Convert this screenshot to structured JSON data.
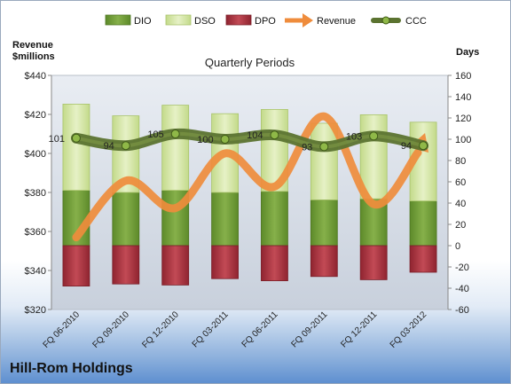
{
  "company": "Hill-Rom Holdings",
  "left_axis_title_1": "Revenue",
  "left_axis_title_2": "$millions",
  "right_axis_title": "Days",
  "chart_data": {
    "type": "bar",
    "title": "Quarterly Periods",
    "categories": [
      "FQ 06-2010",
      "FQ 09-2010",
      "FQ 12-2010",
      "FQ 03-2011",
      "FQ 06-2011",
      "FQ 09-2011",
      "FQ 12-2011",
      "FQ 03-2012"
    ],
    "legend": [
      "DIO",
      "DSO",
      "DPO",
      "Revenue",
      "CCC"
    ],
    "legend_position": "top",
    "series": [
      {
        "name": "DIO",
        "type": "stacked-bar",
        "axis": "right",
        "color": "#77a03d",
        "values": [
          52,
          50,
          52,
          50,
          51,
          43,
          44,
          42
        ]
      },
      {
        "name": "DSO",
        "type": "stacked-bar",
        "axis": "right",
        "color": "#d6e6a8",
        "values": [
          81,
          72,
          80,
          74,
          77,
          72,
          79,
          74
        ]
      },
      {
        "name": "DPO",
        "type": "negative-bar",
        "axis": "right",
        "color": "#b3343f",
        "values": [
          -38,
          -36,
          -37,
          -31,
          -33,
          -29,
          -32,
          -25
        ]
      },
      {
        "name": "Revenue",
        "type": "line",
        "axis": "left",
        "color": "#ef8c3c",
        "values": [
          357,
          386,
          372,
          400,
          383,
          419,
          374,
          405
        ]
      },
      {
        "name": "CCC",
        "type": "line",
        "axis": "right",
        "color": "#556b2f",
        "values": [
          101,
          94,
          105,
          100,
          104,
          93,
          103,
          94
        ],
        "labels": [
          "101",
          "94",
          "105",
          "100",
          "104",
          "93",
          "103",
          "94"
        ]
      }
    ],
    "left_axis": {
      "min": 320,
      "max": 440,
      "step": 20,
      "tick_labels": [
        "$320",
        "$340",
        "$360",
        "$380",
        "$400",
        "$420",
        "$440"
      ]
    },
    "right_axis": {
      "min": -60,
      "max": 160,
      "step": 20,
      "tick_labels": [
        "-60",
        "-40",
        "-20",
        "0",
        "20",
        "40",
        "60",
        "80",
        "100",
        "120",
        "140",
        "160"
      ]
    },
    "grid": false
  }
}
